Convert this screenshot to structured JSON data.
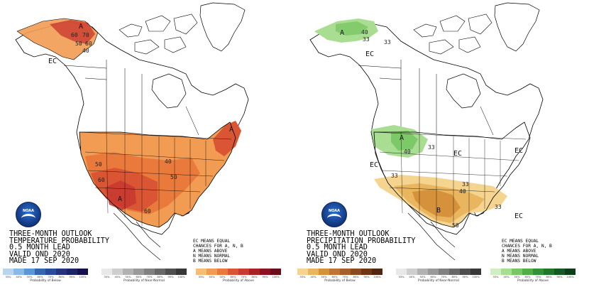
{
  "colors": {
    "below": [
      "#b8d5ef",
      "#8bb9e6",
      "#5a97d6",
      "#3566b3",
      "#2a4aa0",
      "#23337f",
      "#1c2366",
      "#150f4a"
    ],
    "normal": [
      "#e8e8e8",
      "#cfcfcf",
      "#b2b2b2",
      "#9a9a9a",
      "#818181",
      "#686868",
      "#4f4f4f",
      "#373737"
    ],
    "above": [
      "#f7bd72",
      "#f29b52",
      "#ea7a3c",
      "#da5533",
      "#c93a30",
      "#a82226",
      "#8a1520",
      "#6a0d19"
    ],
    "precip_below": [
      "#f4d48e",
      "#e9b55f",
      "#d6913b",
      "#c07332",
      "#a85e28",
      "#8c4a1f",
      "#6e3616",
      "#52250e"
    ],
    "precip_above": [
      "#d0eec2",
      "#a8dd92",
      "#79c763",
      "#4fae44",
      "#2f9237",
      "#1f762c",
      "#155a22",
      "#0c3f17"
    ]
  },
  "temperature": {
    "title_lines": [
      "THREE-MONTH OUTLOOK",
      "TEMPERATURE PROBABILITY",
      "0.5 MONTH LEAD",
      "VALID OND 2020",
      "MADE 17 SEP 2020"
    ],
    "ec_legend": [
      "EC MEANS EQUAL",
      "CHANCES FOR A, N, B",
      "A MEANS ABOVE",
      "N MEANS NORMAL",
      "B MEANS BELOW"
    ],
    "labels": {
      "ec": "EC",
      "a_alaska": "A",
      "a_northeast": "A",
      "a_southwest": "A"
    },
    "contours": {
      "c60": "60",
      "c70": "70",
      "c50a": "50",
      "c60a": "60",
      "c40a": "40",
      "c50b": "50",
      "c40b": "40",
      "c60b": "60",
      "c50c": "50",
      "c60c": "60"
    },
    "scales": [
      {
        "caption": "Probability of Below",
        "ticks": [
          "33%",
          "40%",
          "50%",
          "60%",
          "70%",
          "80%",
          "90%",
          "100%"
        ],
        "palette": "below"
      },
      {
        "caption": "Probability of Near-Normal",
        "ticks": [
          "33%",
          "40%",
          "50%",
          "60%",
          "70%",
          "80%",
          "90%",
          "100%"
        ],
        "palette": "normal"
      },
      {
        "caption": "Probability of Above",
        "ticks": [
          "33%",
          "40%",
          "50%",
          "60%",
          "70%",
          "80%",
          "90%",
          "100%"
        ],
        "palette": "above"
      }
    ]
  },
  "precipitation": {
    "title_lines": [
      "THREE-MONTH OUTLOOK",
      "PRECIPITATION PROBABILITY",
      "0.5 MONTH LEAD",
      "VALID OND 2020",
      "MADE 17 SEP 2020"
    ],
    "ec_legend": [
      "EC MEANS EQUAL",
      "CHANCES FOR A, N, B",
      "A MEANS ABOVE",
      "N MEANS NORMAL",
      "B MEANS BELOW"
    ],
    "labels": {
      "ec_alaska": "EC",
      "ec_west": "EC",
      "ec_central": "EC",
      "ec_east": "EC",
      "ec_southeast": "EC",
      "a_alaska": "A",
      "a_north": "A",
      "b_south": "B"
    },
    "contours": {
      "c40a": "40",
      "c33a": "33",
      "c33b": "33",
      "c40b": "40",
      "c33c": "33",
      "c33d": "33",
      "c33e": "33",
      "c40c": "40",
      "c33f": "33",
      "c50": "50"
    },
    "scales": [
      {
        "caption": "Probability of Below",
        "ticks": [
          "33%",
          "40%",
          "50%",
          "60%",
          "70%",
          "80%",
          "90%",
          "100%"
        ],
        "palette": "precip_below"
      },
      {
        "caption": "Probability of Near-Normal",
        "ticks": [
          "33%",
          "40%",
          "50%",
          "60%",
          "70%",
          "80%",
          "90%",
          "100%"
        ],
        "palette": "normal"
      },
      {
        "caption": "Probability of Above",
        "ticks": [
          "33%",
          "40%",
          "50%",
          "60%",
          "70%",
          "80%",
          "90%",
          "100%"
        ],
        "palette": "precip_above"
      }
    ]
  }
}
